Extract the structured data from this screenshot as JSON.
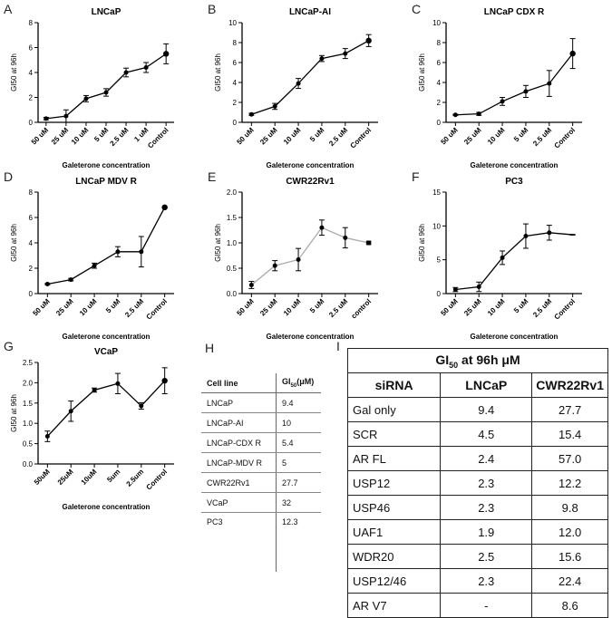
{
  "panels": [
    {
      "letter": "A",
      "chart_data": {
        "type": "line",
        "title": "LNCaP",
        "xlabel": "Galeterone concentration",
        "ylabel": "GI50 at 96h",
        "categories": [
          "50 uM",
          "25 uM",
          "10 uM",
          "5 uM",
          "2.5 uM",
          "1 uM",
          "Control"
        ],
        "values": [
          0.3,
          0.5,
          1.9,
          2.4,
          4.0,
          4.4,
          5.5
        ],
        "errors": [
          0.1,
          0.5,
          0.25,
          0.3,
          0.35,
          0.4,
          0.8
        ],
        "ylim": [
          0,
          8
        ],
        "yticks": [
          0,
          2,
          4,
          6,
          8
        ],
        "line_color": "#000000",
        "marker_control": "circle"
      }
    },
    {
      "letter": "B",
      "chart_data": {
        "type": "line",
        "title": "LNCaP-AI",
        "xlabel": "Galeterone concentration",
        "ylabel": "GI50 at 96h",
        "categories": [
          "50 uM",
          "25 uM",
          "10 uM",
          "5 uM",
          "2.5 uM",
          "Control"
        ],
        "values": [
          0.8,
          1.6,
          3.9,
          6.4,
          6.9,
          8.2
        ],
        "errors": [
          0.1,
          0.3,
          0.5,
          0.3,
          0.5,
          0.6
        ],
        "ylim": [
          0,
          10
        ],
        "yticks": [
          0,
          2,
          4,
          6,
          8,
          10
        ],
        "line_color": "#000000",
        "marker_control": "circle"
      }
    },
    {
      "letter": "C",
      "chart_data": {
        "type": "line",
        "title": "LNCaP CDX R",
        "xlabel": "Galeterone concentration",
        "ylabel": "GI50 at 96h",
        "categories": [
          "50 uM",
          "25 uM",
          "10 uM",
          "5 uM",
          "2.5 uM",
          "Control"
        ],
        "values": [
          0.75,
          0.85,
          2.1,
          3.1,
          3.9,
          6.9
        ],
        "errors": [
          0.05,
          0.15,
          0.4,
          0.6,
          1.3,
          1.5
        ],
        "ylim": [
          0,
          10
        ],
        "yticks": [
          0,
          2,
          4,
          6,
          8,
          10
        ],
        "line_color": "#000000",
        "marker_control": "circle"
      }
    },
    {
      "letter": "D",
      "chart_data": {
        "type": "line",
        "title": "LNCaP MDV R",
        "xlabel": "Galeterone concentration",
        "ylabel": "GI50 at 96h",
        "categories": [
          "50 uM",
          "25 uM",
          "10 uM",
          "5 uM",
          "2.5 uM",
          "Control"
        ],
        "values": [
          0.75,
          1.1,
          2.2,
          3.3,
          3.3,
          6.8
        ],
        "errors": [
          0.05,
          0.1,
          0.2,
          0.4,
          1.2,
          0.05
        ],
        "ylim": [
          0,
          8
        ],
        "yticks": [
          0,
          2,
          4,
          6,
          8
        ],
        "line_color": "#000000",
        "marker_control": "circle"
      }
    },
    {
      "letter": "E",
      "chart_data": {
        "type": "line",
        "title": "CWR22Rv1",
        "xlabel": "Galeterone concentration",
        "ylabel": "GI50 at 96h",
        "categories": [
          "50 uM",
          "25 uM",
          "10 uM",
          "5 uM",
          "2.5 uM",
          "control"
        ],
        "values": [
          0.17,
          0.55,
          0.67,
          1.3,
          1.1,
          1.0
        ],
        "errors": [
          0.07,
          0.1,
          0.22,
          0.15,
          0.2,
          0.02
        ],
        "ylim": [
          0,
          2.0
        ],
        "yticks": [
          0.0,
          0.5,
          1.0,
          1.5,
          2.0
        ],
        "line_color": "#aaaaaa",
        "marker_control": "square"
      }
    },
    {
      "letter": "F",
      "chart_data": {
        "type": "line",
        "title": "PC3",
        "xlabel": "Galeterone concentration",
        "ylabel": "GI50 at 96h",
        "categories": [
          "50 uM",
          "25 uM",
          "10 uM",
          "5 uM",
          "2.5 uM",
          "Control"
        ],
        "values": [
          0.6,
          1.0,
          5.3,
          8.5,
          9.0,
          8.7
        ],
        "errors": [
          0.3,
          0.7,
          1.0,
          1.8,
          1.1,
          0.05
        ],
        "ylim": [
          0,
          15
        ],
        "yticks": [
          0,
          5,
          10,
          15
        ],
        "line_color": "#000000",
        "marker_control": "none"
      }
    },
    {
      "letter": "G",
      "chart_data": {
        "type": "line",
        "title": "VCaP",
        "xlabel": "Galeterone concentration",
        "ylabel": "GI50 at 96h",
        "categories": [
          "50uM",
          "25uM",
          "10uM",
          "5um",
          "2.5um",
          "Control"
        ],
        "values": [
          0.68,
          1.3,
          1.82,
          1.98,
          1.43,
          2.05
        ],
        "errors": [
          0.13,
          0.25,
          0.05,
          0.25,
          0.08,
          0.32
        ],
        "ylim": [
          0,
          2.5
        ],
        "yticks": [
          0.0,
          0.5,
          1.0,
          1.5,
          2.0,
          2.5
        ],
        "line_color": "#000000",
        "marker_control": "circle"
      }
    }
  ],
  "table_h": {
    "letter": "H",
    "col1": "Cell line",
    "col2": "GI",
    "col2_sub": "50",
    "col2_tail": "(μM)",
    "rows": [
      {
        "name": "LNCaP",
        "value": "9.4"
      },
      {
        "name": "LNCaP-AI",
        "value": "10"
      },
      {
        "name": "LNCaP-CDX R",
        "value": "5.4"
      },
      {
        "name": "LNCaP-MDV R",
        "value": "5"
      },
      {
        "name": "CWR22Rv1",
        "value": "27.7"
      },
      {
        "name": "VCaP",
        "value": "32"
      },
      {
        "name": "PC3",
        "value": "12.3"
      }
    ]
  },
  "table_i": {
    "letter": "I",
    "title_pre": "GI",
    "title_sub": "50",
    "title_post": " at 96h μM",
    "headers": [
      "siRNA",
      "LNCaP",
      "CWR22Rv1"
    ],
    "rows": [
      [
        "Gal only",
        "9.4",
        "27.7"
      ],
      [
        "SCR",
        "4.5",
        "15.4"
      ],
      [
        "AR FL",
        "2.4",
        "57.0"
      ],
      [
        "USP12",
        "2.3",
        "12.2"
      ],
      [
        "USP46",
        "2.3",
        "9.8"
      ],
      [
        "UAF1",
        "1.9",
        "12.0"
      ],
      [
        "WDR20",
        "2.5",
        "15.6"
      ],
      [
        "USP12/46",
        "2.3",
        "22.4"
      ],
      [
        "AR V7",
        "-",
        "8.6"
      ]
    ]
  }
}
